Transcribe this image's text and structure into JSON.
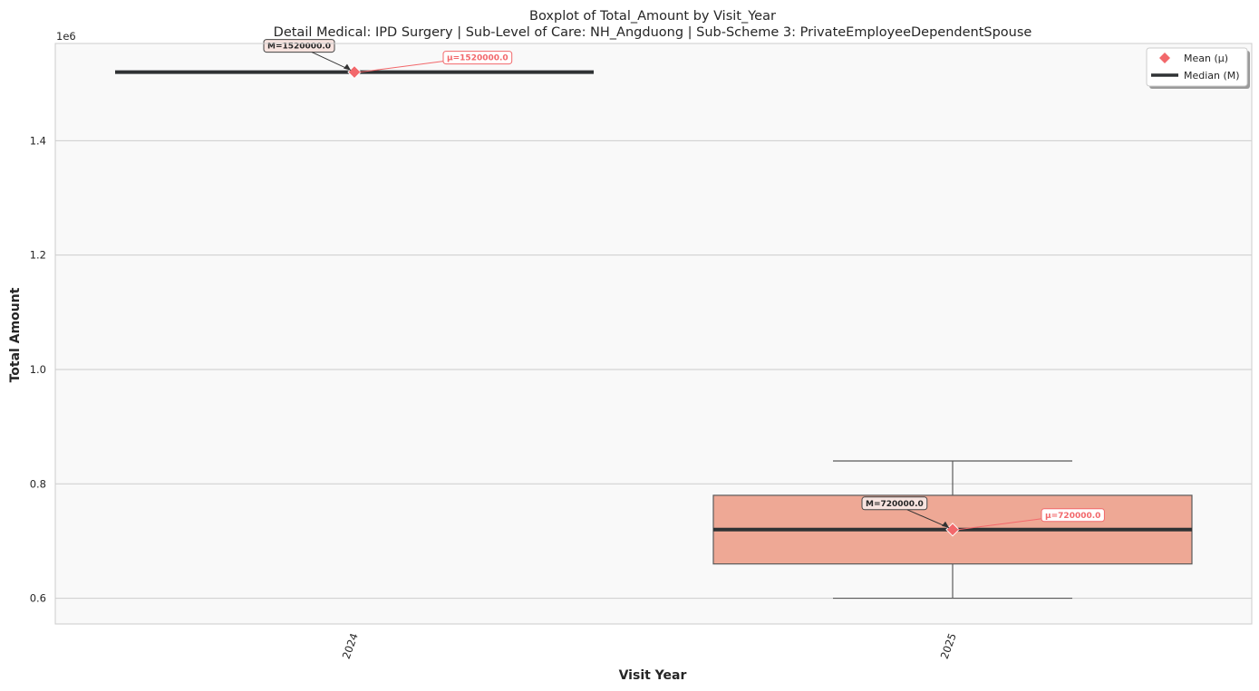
{
  "chart_data": {
    "type": "boxplot",
    "title": "Boxplot of Total_Amount by Visit_Year",
    "subtitle": "Detail Medical: IPD Surgery | Sub-Level of Care: NH_Angduong | Sub-Scheme 3: PrivateEmployeeDependentSpouse",
    "xlabel": "Visit Year",
    "ylabel": "Total Amount",
    "y_offset_label": "1e6",
    "y_scale_factor": 1000000,
    "ylim": [
      555000,
      1570000
    ],
    "yticks": [
      600000,
      800000,
      1000000,
      1200000,
      1400000
    ],
    "ytick_labels": [
      "0.6",
      "0.8",
      "1.0",
      "1.2",
      "1.4"
    ],
    "categories": [
      "2024",
      "2025"
    ],
    "boxes": [
      {
        "category": "2024",
        "whisker_low": 1520000,
        "q1": 1520000,
        "median": 1520000,
        "q3": 1520000,
        "whisker_high": 1520000,
        "mean": 1520000,
        "median_label": "M=1520000.0",
        "mean_label": "μ=1520000.0",
        "fill": "#eea895"
      },
      {
        "category": "2025",
        "whisker_low": 600000,
        "q1": 660000,
        "median": 720000,
        "q3": 780000,
        "whisker_high": 840000,
        "mean": 720000,
        "median_label": "M=720000.0",
        "mean_label": "μ=720000.0",
        "fill": "#eea895"
      }
    ],
    "grid": true,
    "legend": {
      "placement": "top-right",
      "items": [
        {
          "label": "Mean (μ)",
          "marker": "diamond-icon",
          "color": "#f2686b"
        },
        {
          "label": "Median (M)",
          "marker": "line",
          "color": "#2f3234"
        }
      ]
    },
    "colors": {
      "background": "#f9f9f9",
      "grid": "#cccccc",
      "box_edge": "#5a5a5a",
      "median_line": "#2f3234",
      "mean_marker": "#f2686b",
      "median_annotation_fill": "#f7e3df",
      "mean_annotation_fill": "#ffffff"
    }
  }
}
